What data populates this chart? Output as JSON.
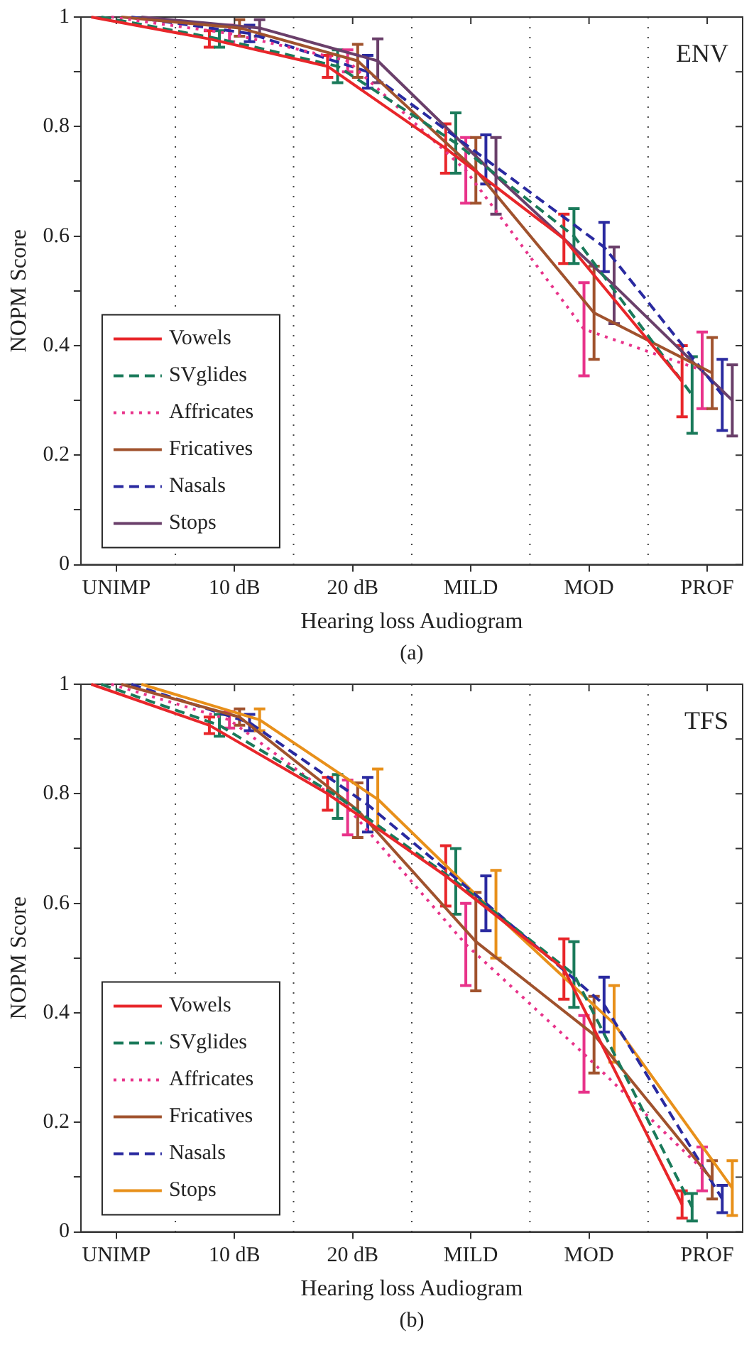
{
  "chart_data": [
    {
      "type": "line",
      "xlabel": "Hearing loss Audiogram",
      "ylabel": "NOPM Score",
      "annotations": [
        "ENV",
        "(a)"
      ],
      "categories": [
        "UNIMP",
        "10 dB",
        "20 dB",
        "MILD",
        "MOD",
        "PROF"
      ],
      "ylim": [
        0,
        1
      ],
      "yticks": [
        0,
        {
          "value": 0.1,
          "label": null
        },
        0.2,
        {
          "value": 0.3,
          "label": null
        },
        0.4,
        {
          "value": 0.5,
          "label": null
        },
        0.6,
        {
          "value": 0.7,
          "label": null
        },
        0.8,
        {
          "value": 0.9,
          "label": null
        },
        1
      ],
      "grid": "x",
      "legend": "bottom left",
      "marker": "none",
      "series": [
        {
          "name": "Vowels",
          "color": "#e8262a",
          "line_style": "solid",
          "values": [
            1,
            0.96,
            0.91,
            0.76,
            0.595,
            0.335
          ],
          "errors": [
            null,
            0.015,
            0.02,
            0.045,
            0.045,
            0.065
          ]
        },
        {
          "name": "SVglides",
          "color": "#1a7a5a",
          "line_style": "dashed",
          "values": [
            1,
            0.96,
            0.91,
            0.77,
            0.6,
            0.31
          ],
          "errors": [
            null,
            0.015,
            0.03,
            0.055,
            0.05,
            0.07
          ]
        },
        {
          "name": "Affricates",
          "color": "#e8338a",
          "line_style": "dotted",
          "values": [
            1,
            0.97,
            0.92,
            0.72,
            0.43,
            0.355
          ],
          "errors": [
            null,
            0.015,
            0.02,
            0.06,
            0.085,
            0.07
          ]
        },
        {
          "name": "Fricatives",
          "color": "#a0522d",
          "line_style": "solid",
          "values": [
            1,
            0.98,
            0.92,
            0.72,
            0.46,
            0.35
          ],
          "errors": [
            null,
            0.015,
            0.03,
            0.06,
            0.085,
            0.065
          ]
        },
        {
          "name": "Nasals",
          "color": "#2a2aa0",
          "line_style": "dashed",
          "values": [
            1,
            0.97,
            0.9,
            0.74,
            0.58,
            0.31
          ],
          "errors": [
            null,
            0.015,
            0.03,
            0.045,
            0.045,
            0.065
          ]
        },
        {
          "name": "Stops",
          "color": "#6a3f6a",
          "line_style": "solid",
          "values": [
            1,
            0.98,
            0.92,
            0.71,
            0.51,
            0.3
          ],
          "errors": [
            null,
            0.015,
            0.04,
            0.07,
            0.07,
            0.065
          ]
        }
      ]
    },
    {
      "type": "line",
      "xlabel": "Hearing loss Audiogram",
      "ylabel": "NOPM Score",
      "annotations": [
        "TFS",
        "(b)"
      ],
      "categories": [
        "UNIMP",
        "10 dB",
        "20 dB",
        "MILD",
        "MOD",
        "PROF"
      ],
      "ylim": [
        0,
        1
      ],
      "yticks": [
        0,
        {
          "value": 0.1,
          "label": null
        },
        0.2,
        {
          "value": 0.3,
          "label": null
        },
        0.4,
        {
          "value": 0.5,
          "label": null
        },
        0.6,
        {
          "value": 0.7,
          "label": null
        },
        0.8,
        {
          "value": 0.9,
          "label": null
        },
        1
      ],
      "grid": "x",
      "legend": "bottom left",
      "marker": "none",
      "series": [
        {
          "name": "Vowels",
          "color": "#e8262a",
          "line_style": "solid",
          "values": [
            1,
            0.925,
            0.8,
            0.65,
            0.48,
            0.05
          ],
          "errors": [
            null,
            0.015,
            0.03,
            0.055,
            0.055,
            0.025
          ]
        },
        {
          "name": "SVglides",
          "color": "#1a7a5a",
          "line_style": "dashed",
          "values": [
            1,
            0.925,
            0.795,
            0.64,
            0.47,
            0.045
          ],
          "errors": [
            null,
            0.02,
            0.04,
            0.06,
            0.06,
            0.025
          ]
        },
        {
          "name": "Affricates",
          "color": "#e8338a",
          "line_style": "dotted",
          "values": [
            1,
            0.935,
            0.775,
            0.525,
            0.325,
            0.115
          ],
          "errors": [
            null,
            0.015,
            0.05,
            0.075,
            0.07,
            0.04
          ]
        },
        {
          "name": "Fricatives",
          "color": "#a0522d",
          "line_style": "solid",
          "values": [
            1,
            0.94,
            0.77,
            0.53,
            0.36,
            0.095
          ],
          "errors": [
            null,
            0.015,
            0.05,
            0.09,
            0.07,
            0.035
          ]
        },
        {
          "name": "Nasals",
          "color": "#2a2aa0",
          "line_style": "dashed",
          "values": [
            1,
            0.93,
            0.78,
            0.6,
            0.415,
            0.06
          ],
          "errors": [
            null,
            0.015,
            0.05,
            0.05,
            0.05,
            0.025
          ]
        },
        {
          "name": "Stops",
          "color": "#e8901a",
          "line_style": "solid",
          "values": [
            1,
            0.935,
            0.79,
            0.58,
            0.38,
            0.08
          ],
          "errors": [
            null,
            0.02,
            0.055,
            0.08,
            0.07,
            0.05
          ]
        }
      ]
    }
  ]
}
